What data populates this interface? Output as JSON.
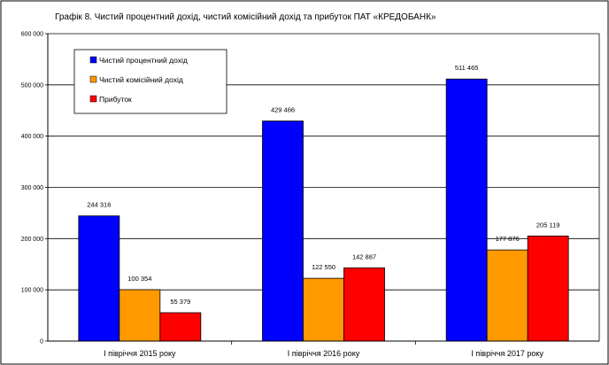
{
  "chart_data": {
    "type": "bar",
    "title": "Графік 8. Чистий процентний дохід, чистий комісійний дохід та прибуток ПАТ «КРЕДОБАНК»",
    "categories": [
      "І півріччя 2015 року",
      "І півріччя 2016 року",
      "І півріччя 2017 року"
    ],
    "series": [
      {
        "name": "Чистий процентний дохід",
        "color": "#0000ff",
        "values": [
          244316,
          429466,
          511465
        ],
        "labels": [
          "244 316",
          "429 466",
          "511 465"
        ]
      },
      {
        "name": "Чистий комісійний дохід",
        "color": "#ff9900",
        "values": [
          100354,
          122550,
          177876
        ],
        "labels": [
          "100 354",
          "122 550",
          "177 876"
        ]
      },
      {
        "name": "Прибуток",
        "color": "#ff0000",
        "values": [
          55379,
          142887,
          205119
        ],
        "labels": [
          "55 379",
          "142 887",
          "205 119"
        ]
      }
    ],
    "ylim": [
      0,
      600000
    ],
    "yticks": [
      0,
      100000,
      200000,
      300000,
      400000,
      500000,
      600000
    ],
    "ytick_labels": [
      "0",
      "100 000",
      "200 000",
      "300 000",
      "400 000",
      "500 000",
      "600 000"
    ],
    "grid": true,
    "legend_position": "top-left"
  }
}
